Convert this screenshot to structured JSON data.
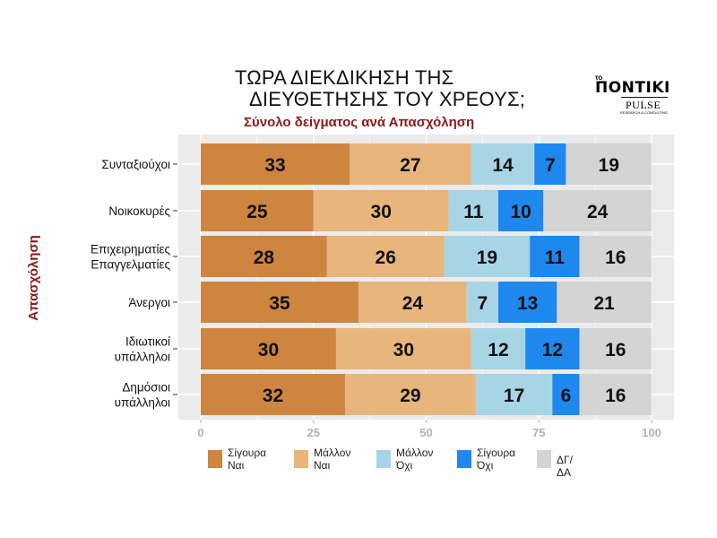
{
  "title_line1": "ΤΩΡΑ ΔΙΕΚΔΙΚΗΣΗ ΤΗΣ",
  "title_line2": "ΔΙΕΥΘΕΤΗΣΗΣ ΤΟΥ ΧΡΕΟΥΣ;",
  "subtitle": "Σύνολο δείγματος ανά Απασχόληση",
  "logo": {
    "prefix": "το",
    "name": "ΠΟΝΤΙΚΙ",
    "brand": "PULSE",
    "tagline": "RESEARCH & CONSULTING"
  },
  "colors": {
    "plot_bg": "#ebebeb",
    "grid": "#ffffff",
    "ylabel": "#8b1a1a",
    "axis_tick": "#b3b3b3"
  },
  "chart_data": {
    "type": "bar",
    "orientation": "horizontal",
    "stacked": true,
    "ylabel": "Απασχόληση",
    "xlim": [
      0,
      100
    ],
    "x_ticks": [
      "0",
      "25",
      "50",
      "75",
      "100"
    ],
    "grid": true,
    "legend_position": "bottom",
    "categories": [
      [
        "Συνταξιούχοι"
      ],
      [
        "Νοικοκυρές"
      ],
      [
        "Επιχειρηματίες",
        "Επαγγελματίες"
      ],
      [
        "Άνεργοι"
      ],
      [
        "Ιδιωτικοί",
        "υπάλληλοι"
      ],
      [
        "Δημόσιοι",
        "υπάλληλοι"
      ]
    ],
    "series": [
      {
        "name": [
          "Σίγουρα",
          "Ναι"
        ],
        "color": "#cd8540",
        "values": [
          33,
          25,
          28,
          35,
          30,
          32
        ]
      },
      {
        "name": [
          "Μάλλον",
          "Ναι"
        ],
        "color": "#e8b57c",
        "values": [
          27,
          30,
          26,
          24,
          30,
          29
        ]
      },
      {
        "name": [
          "Μάλλον",
          "Όχι"
        ],
        "color": "#a8d5e6",
        "values": [
          14,
          11,
          19,
          7,
          12,
          17
        ]
      },
      {
        "name": [
          "Σίγουρα",
          "Όχι"
        ],
        "color": "#1e88ef",
        "values": [
          7,
          10,
          11,
          13,
          12,
          6
        ]
      },
      {
        "name": [
          "ΔΓ/ΔΑ"
        ],
        "color": "#d4d4d4",
        "values": [
          19,
          24,
          16,
          21,
          16,
          16
        ]
      }
    ]
  }
}
